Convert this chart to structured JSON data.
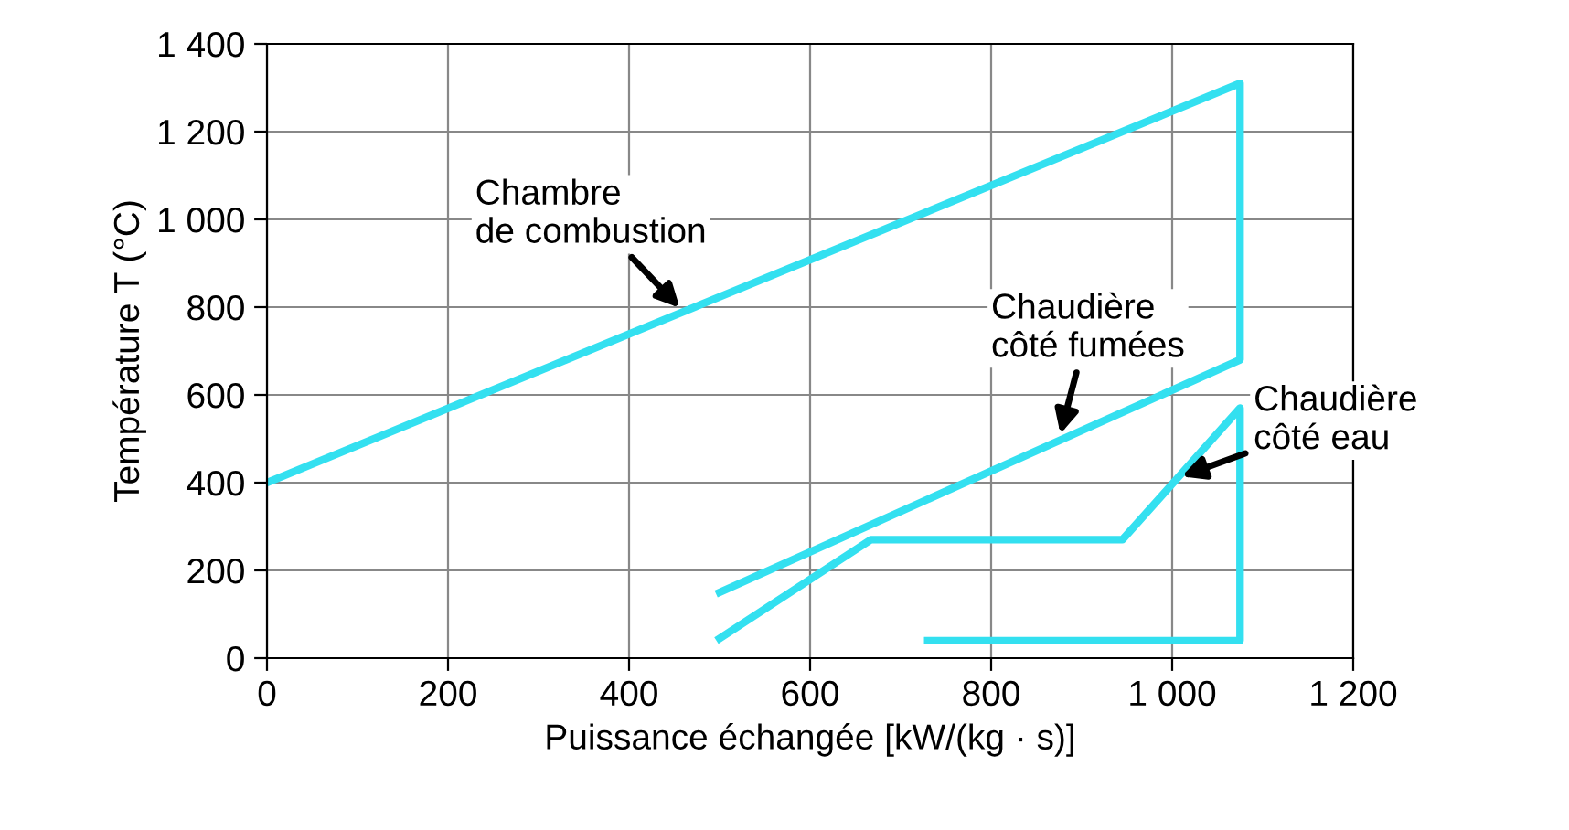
{
  "chart_data": {
    "type": "line",
    "xlabel": "Puissance échangée [kW/(kg · s)]",
    "ylabel": "Température T (°C)",
    "series": [
      {
        "color": "#33e0f0",
        "x": [
          0,
          1075,
          1075,
          500
        ],
        "values": [
          400,
          1310,
          680,
          150
        ]
      },
      {
        "color": "#33e0f0",
        "x": [
          500,
          667,
          945,
          1075,
          1075,
          730
        ],
        "values": [
          45,
          270,
          270,
          570,
          40,
          40
        ]
      }
    ],
    "xlim": [
      0,
      1200
    ],
    "ylim": [
      0,
      1400
    ],
    "xticks": [
      0,
      200,
      400,
      600,
      800,
      {
        "value": 1000,
        "label": "1 000"
      },
      {
        "value": 1200,
        "label": "1 200"
      }
    ],
    "yticks": [
      0,
      200,
      400,
      600,
      800,
      {
        "value": 1000,
        "label": "1 000"
      },
      {
        "value": 1200,
        "label": "1 200"
      },
      {
        "value": 1400,
        "label": "1 400"
      }
    ],
    "grid": true,
    "marker": "none",
    "line_style": "solid",
    "legend": false,
    "annotations": [
      {
        "text": "Chambre\nde combustion",
        "x": 460,
        "y": 790
      },
      {
        "text": "Chaudière\ncôté fumées",
        "x": 875,
        "y": 500
      },
      {
        "text": "Chaudière\ncôté eau",
        "x": 1005,
        "y": 410
      }
    ]
  }
}
